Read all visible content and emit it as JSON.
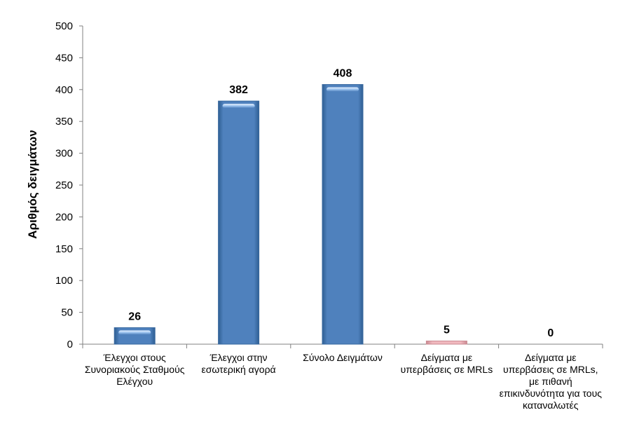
{
  "chart_data": {
    "type": "bar",
    "ylabel": "Αριθμός δειγμάτων",
    "ylim": [
      0,
      500
    ],
    "yticks": [
      0,
      50,
      100,
      150,
      200,
      250,
      300,
      350,
      400,
      450,
      500
    ],
    "grid": false,
    "categories": [
      "Έλεγχοι στους Συνοριακούς Σταθμούς Ελέγχου",
      "Έλεγχοι στην εσωτερική αγορά",
      "Σύνολο Δειγμάτων",
      "Δείγματα με υπερβάσεις σε MRLs",
      "Δείγματα με υπερβάσεις σε MRLs, με πιθανή επικινδυνότητα για τους καταναλωτές"
    ],
    "values": [
      26,
      382,
      408,
      5,
      0
    ],
    "bar_colors": [
      "#4f81bd",
      "#4f81bd",
      "#4f81bd",
      "#e8a0a8",
      "#4f81bd"
    ]
  }
}
